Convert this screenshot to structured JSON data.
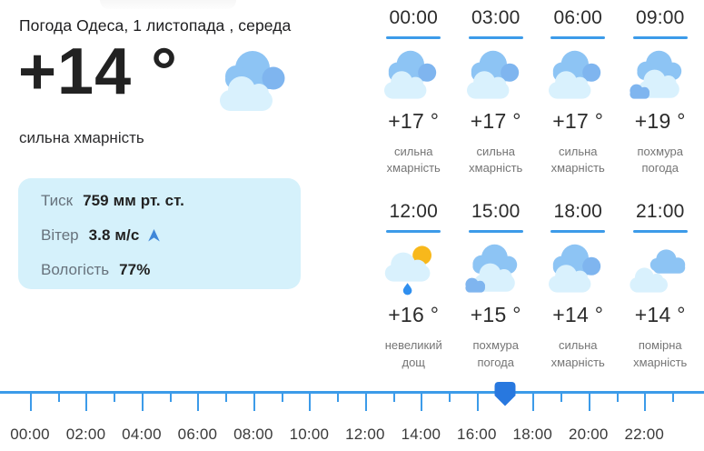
{
  "header": {
    "title": "Погода Одеса, 1 листопада , середа"
  },
  "current": {
    "temperature": "+14 °",
    "condition": "сильна хмарність",
    "icon": "cloud-heavy",
    "details": [
      {
        "label": "Тиск",
        "value": "759 мм рт. ст.",
        "icon": ""
      },
      {
        "label": "Вітер",
        "value": "3.8 м/с",
        "icon": "wind-direction-arrow-icon"
      },
      {
        "label": "Вологість",
        "value": "77%",
        "icon": ""
      }
    ]
  },
  "forecast": {
    "cells": [
      {
        "time": "00:00",
        "icon": "cloud-heavy",
        "temp": "+17 °",
        "desc": "сильна хмарність"
      },
      {
        "time": "03:00",
        "icon": "cloud-heavy",
        "temp": "+17 °",
        "desc": "сильна хмарність"
      },
      {
        "time": "06:00",
        "icon": "cloud-heavy",
        "temp": "+17 °",
        "desc": "сильна хмарність"
      },
      {
        "time": "09:00",
        "icon": "cloud-gloomy",
        "temp": "+19 °",
        "desc": "похмура погода"
      },
      {
        "time": "12:00",
        "icon": "rain-sun",
        "temp": "+16 °",
        "desc": "невеликий дощ"
      },
      {
        "time": "15:00",
        "icon": "cloud-gloomy",
        "temp": "+15 °",
        "desc": "похмура погода"
      },
      {
        "time": "18:00",
        "icon": "cloud-heavy",
        "temp": "+14 °",
        "desc": "сильна хмарність"
      },
      {
        "time": "21:00",
        "icon": "cloud-moderate",
        "temp": "+14 °",
        "desc": "помірна хмарність"
      }
    ]
  },
  "timeline": {
    "labels": [
      "00:00",
      "02:00",
      "04:00",
      "06:00",
      "08:00",
      "10:00",
      "12:00",
      "14:00",
      "16:00",
      "18:00",
      "20:00",
      "22:00"
    ],
    "hour_ticks": 24,
    "selected_hour": 17,
    "selected_time": "17:00"
  },
  "colors": {
    "accent_blue": "#3c9be9",
    "handle_blue": "#2878df",
    "card_bg": "#d5f1fb",
    "cloud_blue": "#8dc4f4",
    "cloud_dark_blue": "#7fb5ef",
    "cloud_light": "#d9f1fd",
    "sun_yellow": "#f8b81b",
    "raindrop_blue": "#2f8fef"
  }
}
